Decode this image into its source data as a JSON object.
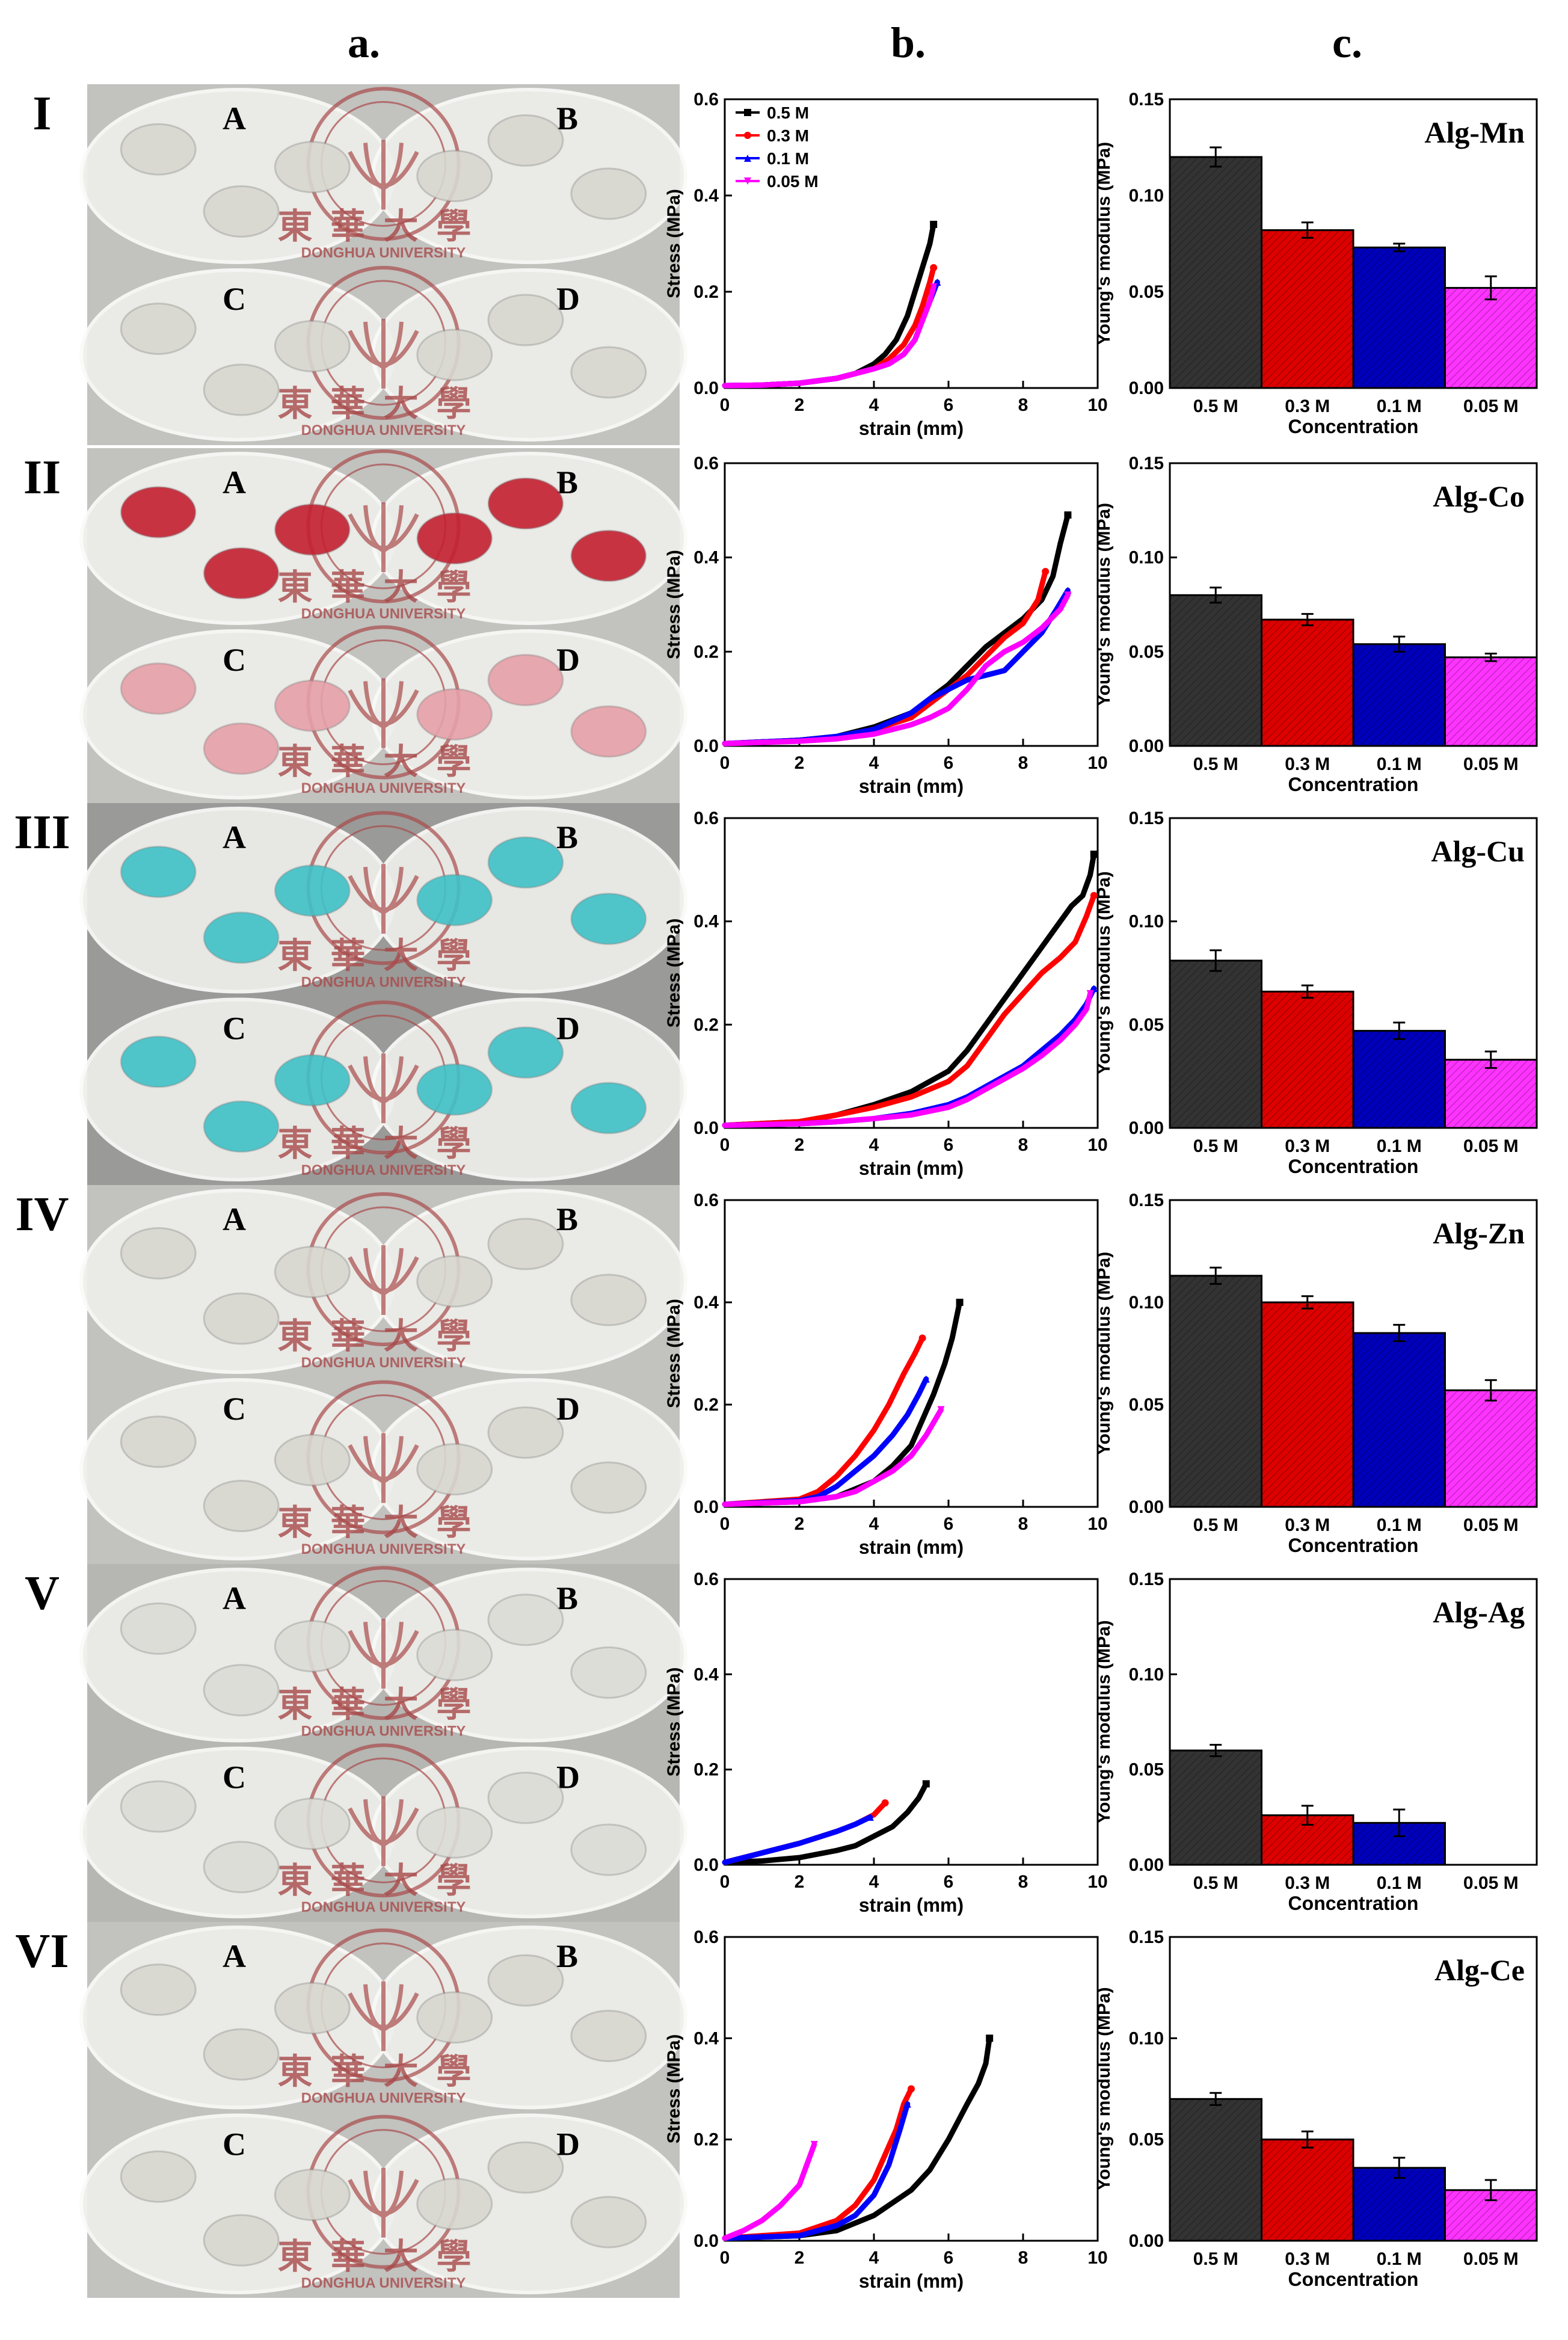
{
  "column_labels": [
    "a.",
    "b.",
    "c."
  ],
  "photo_labels": [
    "A",
    "B",
    "C",
    "D"
  ],
  "watermark": {
    "chinese": "東華大學",
    "english": "DONGHUA UNIVERSITY"
  },
  "colors": {
    "series": [
      "#000000",
      "#ff0000",
      "#0000ff",
      "#ff00ff"
    ],
    "bar_fill": [
      "#333333",
      "#dd0000",
      "#0000bb",
      "#ff33ff"
    ],
    "gel_none": "#d8d8d0",
    "gel_red": "#c42030",
    "gel_pink": "#e6a0a8",
    "gel_cyan": "#3fc2c8",
    "stamp": "#a84a4a"
  },
  "photo_panels": [
    {
      "numeral": "I",
      "gel_style": "clear"
    },
    {
      "numeral": "II",
      "gel_style": "red_pink"
    },
    {
      "numeral": "III",
      "gel_style": "cyan"
    },
    {
      "numeral": "IV",
      "gel_style": "clear"
    },
    {
      "numeral": "V",
      "gel_style": "milky"
    },
    {
      "numeral": "VI",
      "gel_style": "clear"
    }
  ],
  "chart_data": [
    {
      "type": "line",
      "panel": "I-b",
      "xlabel": "strain (mm)",
      "ylabel": "Stress (MPa)",
      "xlim": [
        0,
        10
      ],
      "ylim": [
        0,
        0.6
      ],
      "xticks": [
        0,
        2,
        4,
        6,
        8,
        10
      ],
      "yticks": [
        0.0,
        0.2,
        0.4,
        0.6
      ],
      "legend": [
        "0.5 M",
        "0.3 M",
        "0.1 M",
        "0.05 M"
      ],
      "series": [
        {
          "name": "0.5 M",
          "x": [
            0,
            1,
            2,
            3,
            3.5,
            4,
            4.3,
            4.6,
            4.9,
            5.1,
            5.3,
            5.5,
            5.6
          ],
          "y": [
            0.005,
            0.006,
            0.01,
            0.02,
            0.03,
            0.05,
            0.07,
            0.1,
            0.15,
            0.2,
            0.25,
            0.3,
            0.34
          ]
        },
        {
          "name": "0.3 M",
          "x": [
            0,
            1,
            2,
            3,
            3.5,
            4,
            4.4,
            4.8,
            5.1,
            5.3,
            5.5,
            5.6
          ],
          "y": [
            0.005,
            0.006,
            0.01,
            0.02,
            0.03,
            0.04,
            0.06,
            0.09,
            0.13,
            0.17,
            0.22,
            0.25
          ]
        },
        {
          "name": "0.1 M",
          "x": [
            0,
            1,
            2,
            3,
            3.5,
            4,
            4.4,
            4.8,
            5.1,
            5.3,
            5.5,
            5.7
          ],
          "y": [
            0.005,
            0.006,
            0.01,
            0.02,
            0.03,
            0.04,
            0.05,
            0.07,
            0.1,
            0.14,
            0.18,
            0.22
          ]
        },
        {
          "name": "0.05 M",
          "x": [
            0,
            1,
            2,
            3,
            3.5,
            4,
            4.4,
            4.8,
            5.1,
            5.3,
            5.5,
            5.6
          ],
          "y": [
            0.005,
            0.006,
            0.01,
            0.02,
            0.03,
            0.04,
            0.05,
            0.07,
            0.1,
            0.14,
            0.18,
            0.21
          ]
        }
      ]
    },
    {
      "type": "bar",
      "panel": "I-c",
      "title": "Alg-Mn",
      "ylabel": "Young's modulus (MPa)",
      "xlabel": "Concentration",
      "ylim": [
        0,
        0.15
      ],
      "yticks": [
        0.0,
        0.05,
        0.1,
        0.15
      ],
      "categories": [
        "0.5  M",
        "0.3 M",
        "0.1 M",
        "0.05 M"
      ],
      "values": [
        0.12,
        0.082,
        0.073,
        0.052
      ],
      "errors": [
        0.005,
        0.004,
        0.002,
        0.006
      ]
    },
    {
      "type": "line",
      "panel": "II-b",
      "xlabel": "strain (mm)",
      "ylabel": "Stress (MPa)",
      "xlim": [
        0,
        10
      ],
      "ylim": [
        0,
        0.6
      ],
      "xticks": [
        0,
        2,
        4,
        6,
        8,
        10
      ],
      "yticks": [
        0.0,
        0.2,
        0.4,
        0.6
      ],
      "series": [
        {
          "name": "0.5 M",
          "x": [
            0,
            2,
            3,
            4,
            5,
            5.5,
            6,
            6.5,
            7,
            7.5,
            8,
            8.5,
            8.8,
            9,
            9.2
          ],
          "y": [
            0.005,
            0.012,
            0.02,
            0.04,
            0.07,
            0.1,
            0.13,
            0.17,
            0.21,
            0.24,
            0.27,
            0.31,
            0.36,
            0.43,
            0.49
          ]
        },
        {
          "name": "0.3 M",
          "x": [
            0,
            2,
            3,
            4,
            5,
            5.5,
            6,
            6.5,
            7,
            7.5,
            8,
            8.4,
            8.6
          ],
          "y": [
            0.005,
            0.012,
            0.02,
            0.035,
            0.06,
            0.09,
            0.12,
            0.15,
            0.19,
            0.23,
            0.26,
            0.31,
            0.37
          ]
        },
        {
          "name": "0.1 M",
          "x": [
            0,
            2,
            3,
            4,
            5,
            5.5,
            6,
            6.5,
            7,
            7.5,
            8,
            8.5,
            8.9,
            9.2
          ],
          "y": [
            0.005,
            0.012,
            0.02,
            0.035,
            0.07,
            0.1,
            0.12,
            0.14,
            0.15,
            0.16,
            0.2,
            0.24,
            0.29,
            0.33
          ]
        },
        {
          "name": "0.05 M",
          "x": [
            0,
            2,
            3,
            4,
            5,
            5.5,
            6,
            6.5,
            7,
            7.5,
            8,
            8.5,
            9,
            9.2
          ],
          "y": [
            0.005,
            0.01,
            0.015,
            0.025,
            0.045,
            0.06,
            0.08,
            0.12,
            0.17,
            0.2,
            0.22,
            0.25,
            0.29,
            0.32
          ]
        }
      ]
    },
    {
      "type": "bar",
      "panel": "II-c",
      "title": "Alg-Co",
      "ylabel": "Young's modulus (MPa)",
      "xlabel": "Concentration",
      "ylim": [
        0,
        0.15
      ],
      "yticks": [
        0.0,
        0.05,
        0.1,
        0.15
      ],
      "categories": [
        "0.5  M",
        "0.3 M",
        "0.1 M",
        "0.05 M"
      ],
      "values": [
        0.08,
        0.067,
        0.054,
        0.047
      ],
      "errors": [
        0.004,
        0.003,
        0.004,
        0.002
      ]
    },
    {
      "type": "line",
      "panel": "III-b",
      "xlabel": "strain (mm)",
      "ylabel": "Stress (MPa)",
      "xlim": [
        0,
        10
      ],
      "ylim": [
        0,
        0.6
      ],
      "xticks": [
        0,
        2,
        4,
        6,
        8,
        10
      ],
      "yticks": [
        0.0,
        0.2,
        0.4,
        0.6
      ],
      "series": [
        {
          "name": "0.5 M",
          "x": [
            0,
            2,
            3,
            4,
            5,
            6,
            6.5,
            7,
            7.5,
            8,
            8.5,
            9,
            9.3,
            9.6,
            9.8,
            9.9
          ],
          "y": [
            0.005,
            0.012,
            0.025,
            0.045,
            0.07,
            0.11,
            0.15,
            0.2,
            0.25,
            0.3,
            0.35,
            0.4,
            0.43,
            0.45,
            0.49,
            0.53
          ]
        },
        {
          "name": "0.3 M",
          "x": [
            0,
            2,
            3,
            4,
            5,
            6,
            6.5,
            7,
            7.5,
            8,
            8.5,
            9,
            9.4,
            9.7,
            9.9
          ],
          "y": [
            0.005,
            0.012,
            0.025,
            0.04,
            0.06,
            0.09,
            0.12,
            0.17,
            0.22,
            0.26,
            0.3,
            0.33,
            0.36,
            0.41,
            0.45
          ]
        },
        {
          "name": "0.1 M",
          "x": [
            0,
            2,
            3,
            4,
            5,
            6,
            6.5,
            7,
            7.5,
            8,
            8.5,
            9,
            9.4,
            9.7,
            9.9
          ],
          "y": [
            0.005,
            0.008,
            0.012,
            0.018,
            0.028,
            0.045,
            0.06,
            0.08,
            0.1,
            0.12,
            0.15,
            0.18,
            0.21,
            0.24,
            0.27
          ]
        },
        {
          "name": "0.05 M",
          "x": [
            0,
            2,
            3,
            4,
            5,
            6,
            6.5,
            7,
            7.5,
            8,
            8.5,
            9,
            9.4,
            9.7,
            9.8
          ],
          "y": [
            0.005,
            0.008,
            0.012,
            0.018,
            0.025,
            0.04,
            0.055,
            0.075,
            0.095,
            0.115,
            0.14,
            0.17,
            0.2,
            0.23,
            0.26
          ]
        }
      ]
    },
    {
      "type": "bar",
      "panel": "III-c",
      "title": "Alg-Cu",
      "ylabel": "Young's modulus (MPa)",
      "xlabel": "Concentration",
      "ylim": [
        0,
        0.15
      ],
      "yticks": [
        0.0,
        0.05,
        0.1,
        0.15
      ],
      "categories": [
        "0.5 M",
        "0.3 M",
        "0.1 M",
        "0.05 M"
      ],
      "values": [
        0.081,
        0.066,
        0.047,
        0.033
      ],
      "errors": [
        0.005,
        0.003,
        0.004,
        0.004
      ]
    },
    {
      "type": "line",
      "panel": "IV-b",
      "xlabel": "strain (mm)",
      "ylabel": "Stress (MPa)",
      "xlim": [
        0,
        10
      ],
      "ylim": [
        0,
        0.6
      ],
      "xticks": [
        0,
        2,
        4,
        6,
        8,
        10
      ],
      "yticks": [
        0.0,
        0.2,
        0.4,
        0.6
      ],
      "series": [
        {
          "name": "0.5 M",
          "x": [
            0,
            2,
            3,
            4,
            4.5,
            5,
            5.3,
            5.6,
            5.9,
            6.1,
            6.3
          ],
          "y": [
            0.005,
            0.01,
            0.02,
            0.05,
            0.08,
            0.12,
            0.17,
            0.22,
            0.28,
            0.33,
            0.4
          ]
        },
        {
          "name": "0.3 M",
          "x": [
            0,
            2,
            2.5,
            3,
            3.5,
            4,
            4.4,
            4.8,
            5.1,
            5.3
          ],
          "y": [
            0.005,
            0.015,
            0.03,
            0.06,
            0.1,
            0.15,
            0.2,
            0.26,
            0.3,
            0.33
          ]
        },
        {
          "name": "0.1 M",
          "x": [
            0,
            2,
            2.5,
            3,
            3.5,
            4,
            4.5,
            4.9,
            5.2,
            5.4
          ],
          "y": [
            0.005,
            0.012,
            0.02,
            0.04,
            0.07,
            0.1,
            0.14,
            0.18,
            0.22,
            0.25
          ]
        },
        {
          "name": "0.05 M",
          "x": [
            0,
            2,
            3,
            3.5,
            4,
            4.5,
            5,
            5.4,
            5.8
          ],
          "y": [
            0.005,
            0.01,
            0.02,
            0.03,
            0.05,
            0.07,
            0.1,
            0.14,
            0.19
          ]
        }
      ]
    },
    {
      "type": "bar",
      "panel": "IV-c",
      "title": "Alg-Zn",
      "ylabel": "Young's modulus (MPa)",
      "xlabel": "Concentration",
      "ylim": [
        0,
        0.15
      ],
      "yticks": [
        0.0,
        0.05,
        0.1,
        0.15
      ],
      "categories": [
        "0.5  M",
        "0.3 M",
        "0.1 M",
        "0.05 M"
      ],
      "values": [
        0.113,
        0.1,
        0.085,
        0.057
      ],
      "errors": [
        0.004,
        0.003,
        0.004,
        0.005
      ]
    },
    {
      "type": "line",
      "panel": "V-b",
      "xlabel": "strain (mm)",
      "ylabel": "Stress (MPa)",
      "xlim": [
        0,
        10
      ],
      "ylim": [
        0,
        0.6
      ],
      "xticks": [
        0,
        2,
        4,
        6,
        8,
        10
      ],
      "yticks": [
        0.0,
        0.2,
        0.4,
        0.6
      ],
      "series": [
        {
          "name": "0.5 M",
          "x": [
            0,
            1,
            2,
            3,
            3.5,
            4,
            4.5,
            4.9,
            5.2,
            5.4
          ],
          "y": [
            0.005,
            0.008,
            0.015,
            0.03,
            0.04,
            0.06,
            0.08,
            0.11,
            0.14,
            0.17
          ]
        },
        {
          "name": "0.3 M",
          "x": [
            0,
            1,
            2,
            3,
            3.5,
            4,
            4.3
          ],
          "y": [
            0.005,
            0.025,
            0.045,
            0.07,
            0.085,
            0.105,
            0.13
          ]
        },
        {
          "name": "0.1 M",
          "x": [
            0,
            1,
            2,
            3,
            3.5,
            3.9
          ],
          "y": [
            0.005,
            0.025,
            0.045,
            0.07,
            0.085,
            0.1
          ]
        }
      ]
    },
    {
      "type": "bar",
      "panel": "V-c",
      "title": "Alg-Ag",
      "ylabel": "Young's modulus (MPa)",
      "xlabel": "Concentration",
      "ylim": [
        0,
        0.15
      ],
      "yticks": [
        0.0,
        0.05,
        0.1,
        0.15
      ],
      "categories": [
        "0.5  M",
        "0.3 M",
        "0.1 M",
        "0.05 M"
      ],
      "values": [
        0.06,
        0.026,
        0.022,
        0.0
      ],
      "errors": [
        0.003,
        0.005,
        0.007,
        0.0
      ]
    },
    {
      "type": "line",
      "panel": "VI-b",
      "xlabel": "strain (mm)",
      "ylabel": "Stress (MPa)",
      "xlim": [
        0,
        10
      ],
      "ylim": [
        0,
        0.6
      ],
      "xticks": [
        0,
        2,
        4,
        6,
        8,
        10
      ],
      "yticks": [
        0.0,
        0.2,
        0.4,
        0.6
      ],
      "series": [
        {
          "name": "0.5 M",
          "x": [
            0,
            2,
            3,
            4,
            5,
            5.5,
            6,
            6.5,
            6.8,
            7,
            7.1
          ],
          "y": [
            0.005,
            0.01,
            0.02,
            0.05,
            0.1,
            0.14,
            0.2,
            0.27,
            0.31,
            0.35,
            0.4
          ]
        },
        {
          "name": "0.3 M",
          "x": [
            0,
            2,
            3,
            3.5,
            4,
            4.3,
            4.6,
            4.8,
            5.0
          ],
          "y": [
            0.005,
            0.015,
            0.04,
            0.07,
            0.12,
            0.17,
            0.22,
            0.27,
            0.3
          ]
        },
        {
          "name": "0.1 M",
          "x": [
            0,
            2,
            3,
            3.5,
            4,
            4.4,
            4.7,
            4.9
          ],
          "y": [
            0.005,
            0.01,
            0.03,
            0.05,
            0.09,
            0.15,
            0.22,
            0.27
          ]
        },
        {
          "name": "0.05 M",
          "x": [
            0,
            0.5,
            1,
            1.5,
            2,
            2.2,
            2.4
          ],
          "y": [
            0.005,
            0.02,
            0.04,
            0.07,
            0.11,
            0.15,
            0.19
          ]
        }
      ]
    },
    {
      "type": "bar",
      "panel": "VI-c",
      "title": "Alg-Ce",
      "ylabel": "Young's modulus (MPa)",
      "xlabel": "Concentration",
      "ylim": [
        0,
        0.15
      ],
      "yticks": [
        0.0,
        0.05,
        0.1,
        0.15
      ],
      "categories": [
        "0.5  M",
        "0.3 M",
        "0.1 M",
        "0.05 M"
      ],
      "values": [
        0.07,
        0.05,
        0.036,
        0.025
      ],
      "errors": [
        0.003,
        0.004,
        0.005,
        0.005
      ]
    }
  ]
}
